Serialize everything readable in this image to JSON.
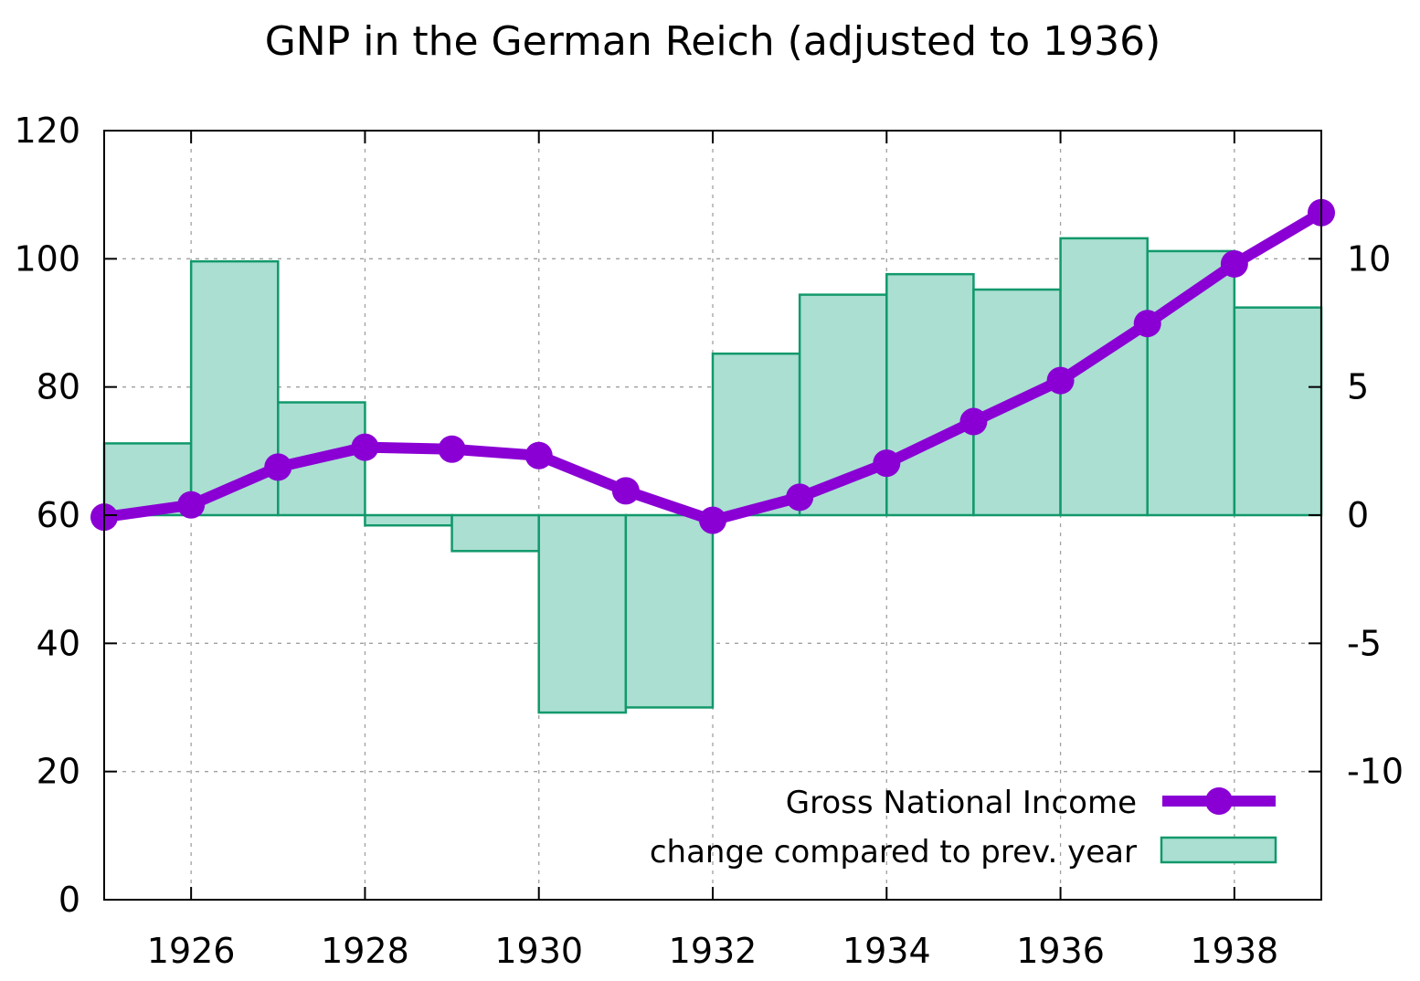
{
  "chart_data": {
    "type": "bar+line",
    "title": "GNP in the German Reich (adjusted to 1936)",
    "xlabel": "",
    "ylabel": "",
    "y2label": "",
    "xlim": [
      1925,
      1939
    ],
    "ylim": [
      0,
      120
    ],
    "y2lim": [
      -15,
      15
    ],
    "grid": true,
    "legend_position": "bottom-right",
    "x_ticks": [
      "1926",
      "1928",
      "1930",
      "1932",
      "1934",
      "1936",
      "1938"
    ],
    "y_ticks": [
      "0",
      "20",
      "40",
      "60",
      "80",
      "100",
      "120"
    ],
    "y2_ticks": [
      "-10",
      "-5",
      "0",
      "5",
      "10"
    ],
    "colors": {
      "line": "#8a00d4",
      "bar_fill": "#aadfd2",
      "bar_edge": "#12996b",
      "grid": "#a0a0a0"
    },
    "series": [
      {
        "name": "Gross National Income",
        "kind": "line",
        "axis": "left",
        "x": [
          1925,
          1926,
          1927,
          1928,
          1929,
          1930,
          1931,
          1932,
          1933,
          1934,
          1935,
          1936,
          1937,
          1938,
          1939
        ],
        "values": [
          59.7,
          61.6,
          67.5,
          70.6,
          70.3,
          69.3,
          63.8,
          59.2,
          62.8,
          68.1,
          74.6,
          81.0,
          89.9,
          99.2,
          107.2
        ]
      },
      {
        "name": "change compared to prev. year",
        "kind": "bar",
        "axis": "right",
        "x": [
          1925.5,
          1926.5,
          1927.5,
          1928.5,
          1929.5,
          1930.5,
          1931.5,
          1932.5,
          1933.5,
          1934.5,
          1935.5,
          1936.5,
          1937.5,
          1938.5
        ],
        "values": [
          2.8,
          9.9,
          4.4,
          -0.4,
          -1.4,
          -7.7,
          -7.5,
          6.3,
          8.6,
          9.4,
          8.8,
          10.8,
          10.3,
          8.1
        ]
      }
    ]
  }
}
